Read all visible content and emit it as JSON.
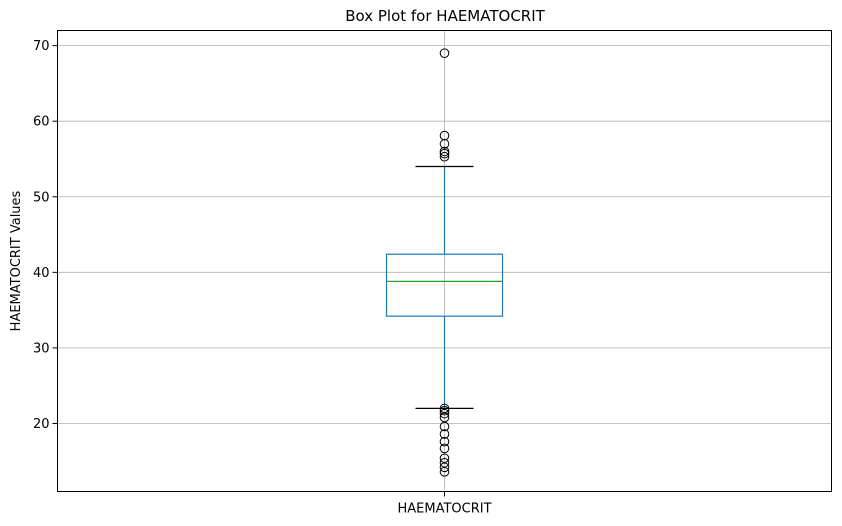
{
  "chart_data": {
    "type": "box",
    "title": "Box Plot for HAEMATOCRIT",
    "xlabel": "",
    "ylabel": "HAEMATOCRIT Values",
    "categories": [
      "HAEMATOCRIT"
    ],
    "ylim": [
      11,
      72
    ],
    "yticks": [
      "20",
      "30",
      "40",
      "50",
      "60",
      "70"
    ],
    "grid": true,
    "box": {
      "whisker_low": 22.0,
      "q1": 34.2,
      "median": 38.8,
      "q3": 42.4,
      "whisker_high": 54.0
    },
    "outliers": [
      69.0,
      58.1,
      57.0,
      56.0,
      55.7,
      55.3,
      22.0,
      21.7,
      21.3,
      20.8,
      19.6,
      18.6,
      17.6,
      16.7,
      15.4,
      14.8,
      14.2,
      13.6
    ],
    "colors": {
      "box": "#1f77b4",
      "median": "#2ca02c",
      "whisker_cap": "#000000",
      "outlier": "#000000",
      "grid": "#b0b0b0"
    }
  }
}
